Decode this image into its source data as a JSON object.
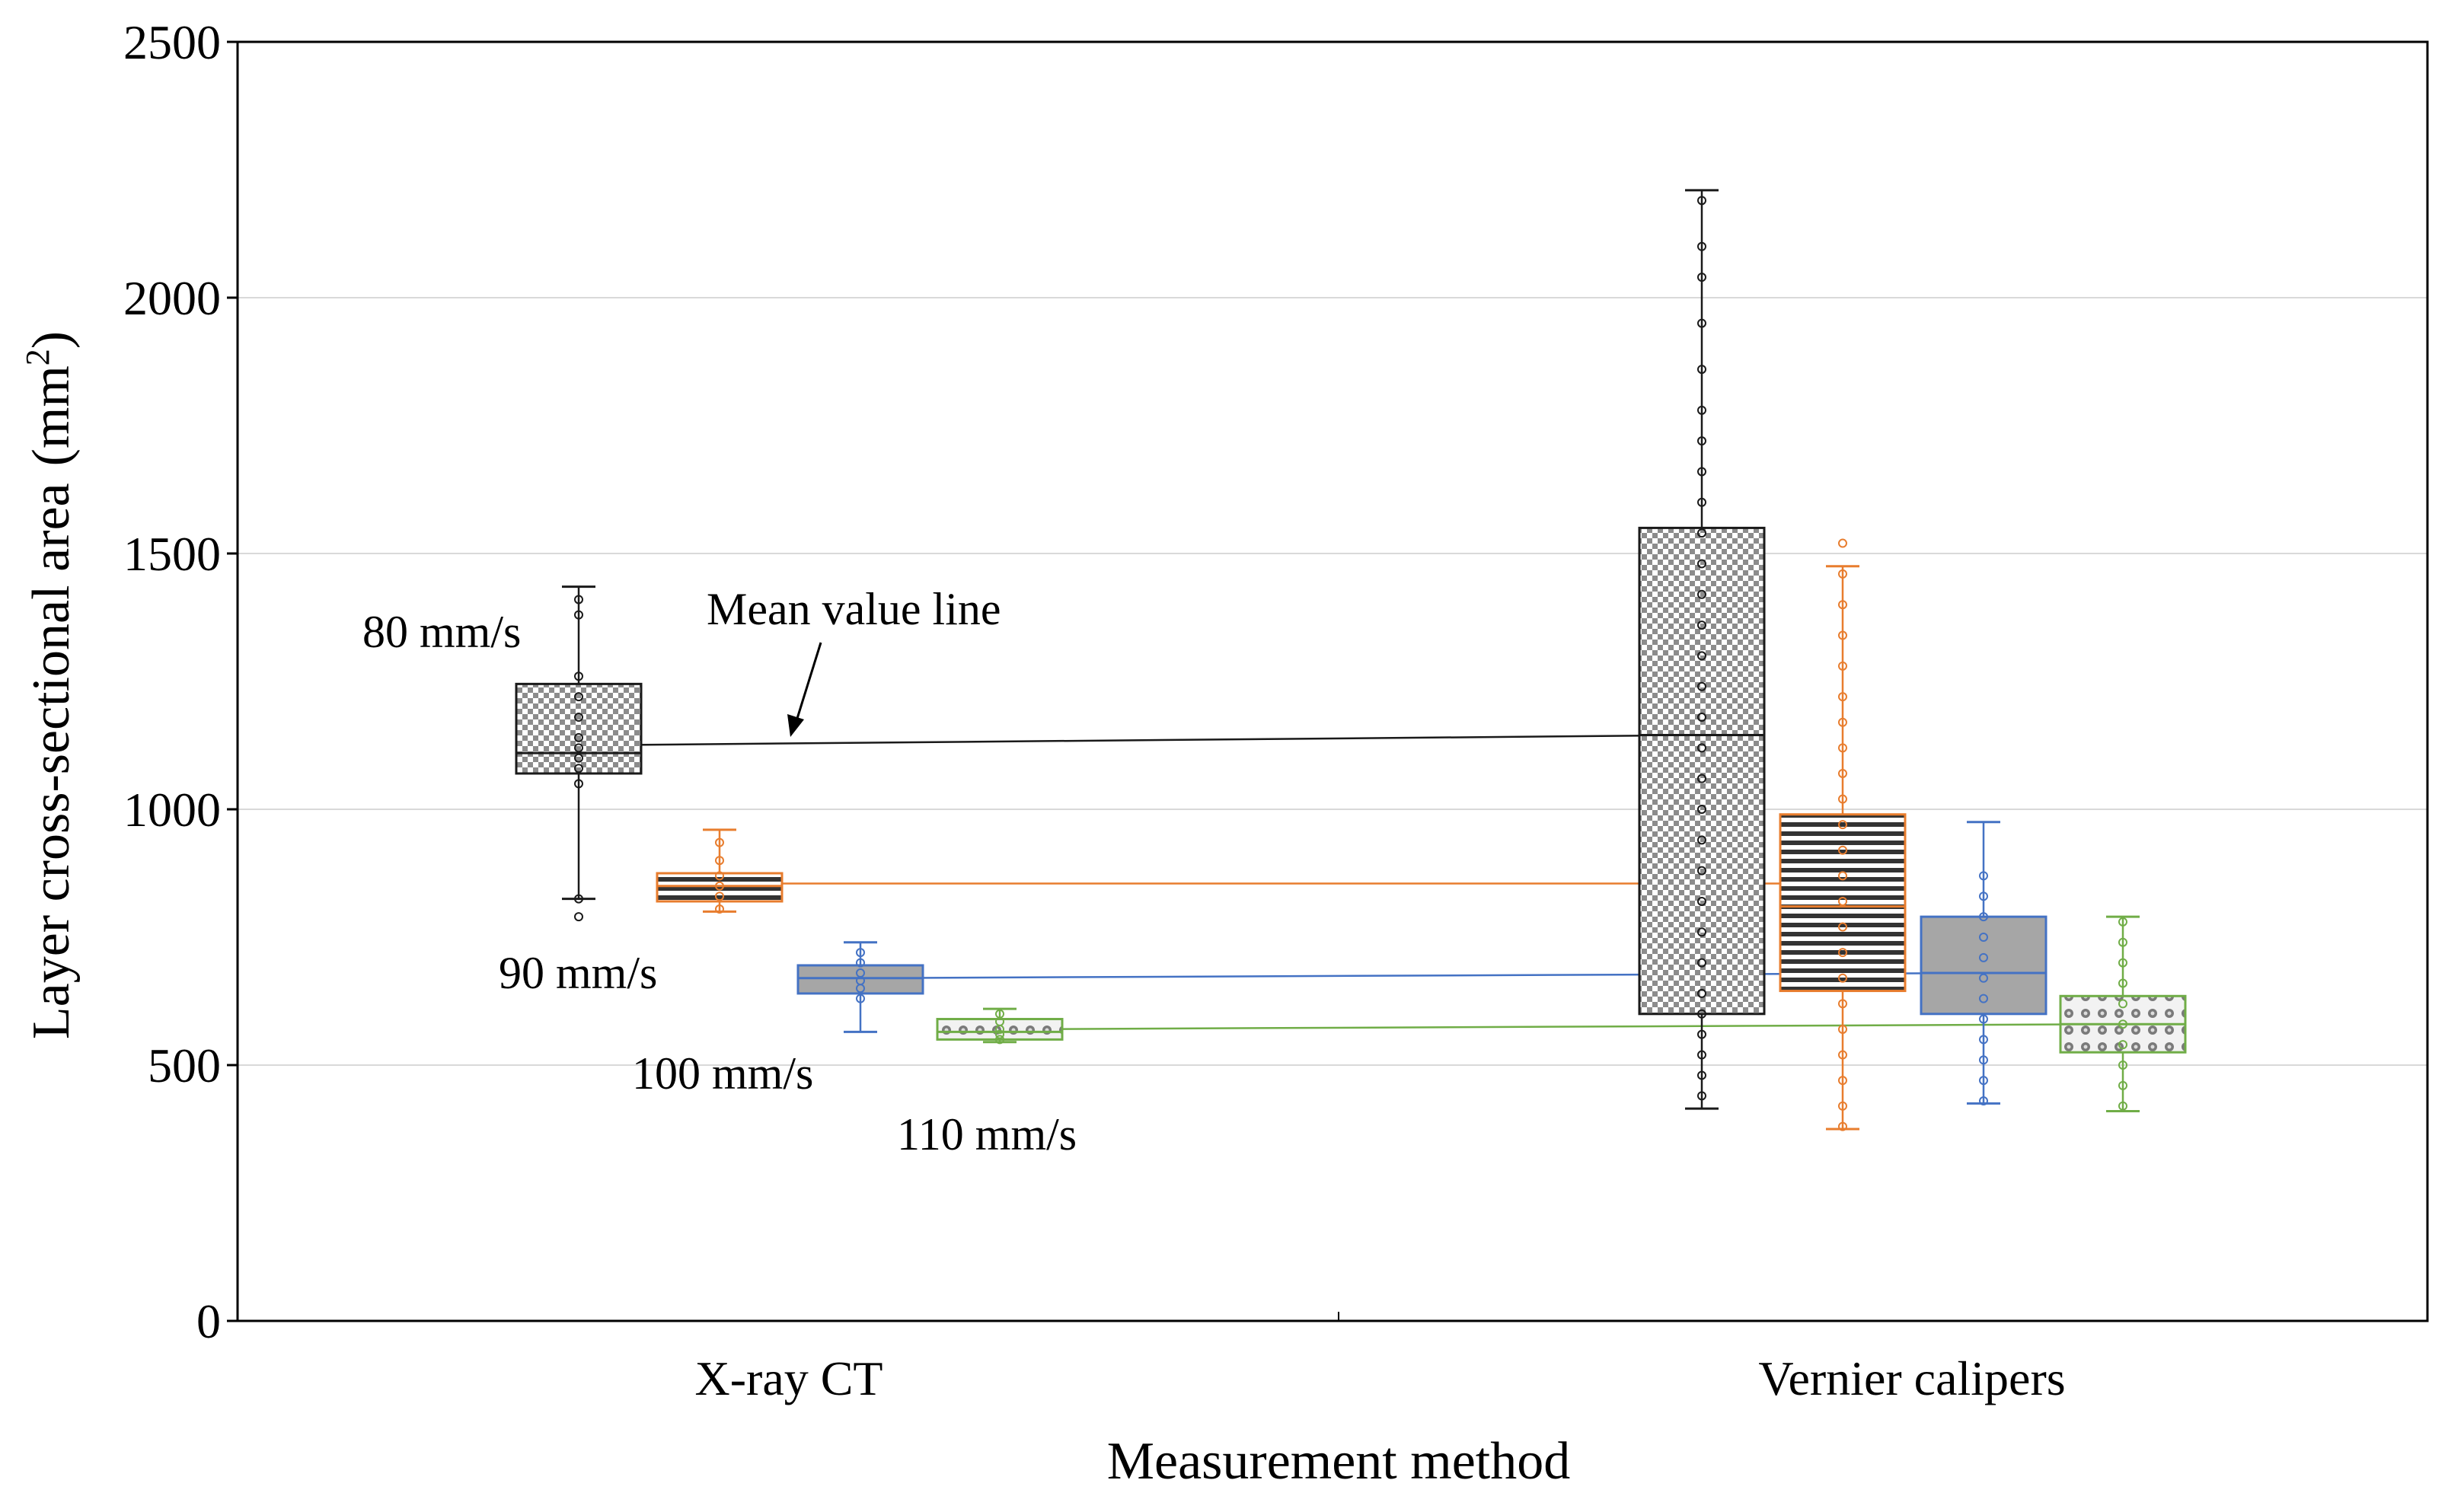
{
  "chart_data": {
    "type": "box",
    "xlabel": "Measurement method",
    "ylabel": "Layer cross-sectional area",
    "ylabel_unit": "(mm",
    "ylabel_sup": "2",
    "ylabel_close": ")",
    "ylim": [
      0,
      2500
    ],
    "yticks": [
      0,
      500,
      1000,
      1500,
      2000,
      2500
    ],
    "grid": "horizontal",
    "categories": [
      "X-ray CT",
      "Vernier calipers"
    ],
    "series": [
      {
        "name": "80 mm/s",
        "color": "#1a1a1a",
        "fill": "checker",
        "boxes": [
          {
            "category": "X-ray CT",
            "whisker_low": 825,
            "q1": 1070,
            "median": 1110,
            "q3": 1245,
            "whisker_high": 1435,
            "mean": 1125,
            "points": [
              790,
              825,
              1050,
              1080,
              1100,
              1120,
              1140,
              1180,
              1220,
              1260,
              1380,
              1410
            ]
          },
          {
            "category": "Vernier calipers",
            "whisker_low": 415,
            "q1": 600,
            "median": 1145,
            "q3": 1550,
            "whisker_high": 2210,
            "mean": 1145,
            "points": [
              440,
              480,
              520,
              560,
              600,
              640,
              700,
              760,
              820,
              880,
              940,
              1000,
              1060,
              1120,
              1180,
              1240,
              1300,
              1360,
              1420,
              1480,
              1540,
              1600,
              1660,
              1720,
              1780,
              1860,
              1950,
              2040,
              2100,
              2190
            ]
          }
        ]
      },
      {
        "name": "90 mm/s",
        "color": "#e87d2e",
        "fill": "stripes",
        "boxes": [
          {
            "category": "X-ray CT",
            "whisker_low": 800,
            "q1": 820,
            "median": 850,
            "q3": 875,
            "whisker_high": 960,
            "mean": 855,
            "points": [
              805,
              830,
              850,
              870,
              900,
              935
            ]
          },
          {
            "category": "Vernier calipers",
            "whisker_low": 375,
            "q1": 645,
            "median": 810,
            "q3": 990,
            "whisker_high": 1475,
            "mean": 855,
            "points": [
              380,
              420,
              470,
              520,
              570,
              620,
              670,
              720,
              770,
              820,
              870,
              920,
              970,
              1020,
              1070,
              1120,
              1170,
              1220,
              1280,
              1340,
              1400,
              1460,
              1520
            ]
          }
        ]
      },
      {
        "name": "100 mm/s",
        "color": "#4472c4",
        "fill": "solid",
        "boxes": [
          {
            "category": "X-ray CT",
            "whisker_low": 565,
            "q1": 640,
            "median": 670,
            "q3": 695,
            "whisker_high": 740,
            "mean": 670,
            "points": [
              630,
              650,
              665,
              680,
              700,
              720
            ]
          },
          {
            "category": "Vernier calipers",
            "whisker_low": 425,
            "q1": 600,
            "median": 680,
            "q3": 790,
            "whisker_high": 975,
            "mean": 680,
            "points": [
              430,
              470,
              510,
              550,
              590,
              630,
              670,
              710,
              750,
              790,
              830,
              870
            ]
          }
        ]
      },
      {
        "name": "110 mm/s",
        "color": "#70ad47",
        "fill": "dots",
        "boxes": [
          {
            "category": "X-ray CT",
            "whisker_low": 545,
            "q1": 550,
            "median": 565,
            "q3": 590,
            "whisker_high": 610,
            "mean": 570,
            "points": [
              550,
              560,
              570,
              585,
              600
            ]
          },
          {
            "category": "Vernier calipers",
            "whisker_low": 410,
            "q1": 525,
            "median": 580,
            "q3": 635,
            "whisker_high": 790,
            "mean": 580,
            "points": [
              420,
              460,
              500,
              540,
              580,
              620,
              660,
              700,
              740,
              780
            ]
          }
        ]
      }
    ],
    "annotations": [
      {
        "text": "Mean value line"
      },
      {
        "text": "80 mm/s"
      },
      {
        "text": "90 mm/s"
      },
      {
        "text": "100 mm/s"
      },
      {
        "text": "110 mm/s"
      }
    ]
  }
}
